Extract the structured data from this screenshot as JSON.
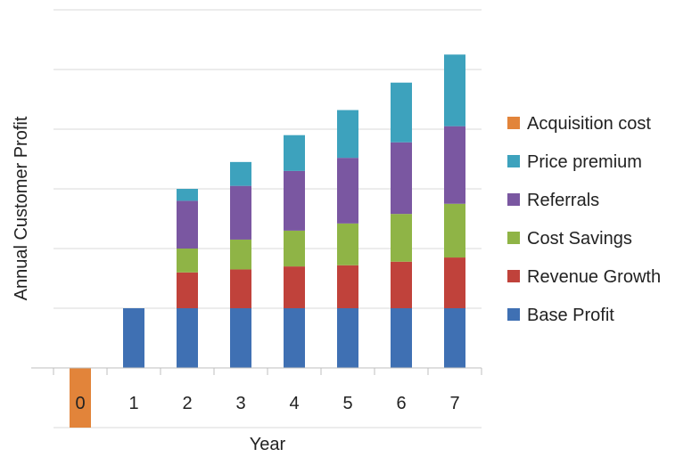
{
  "chart_data": {
    "type": "bar",
    "stacked": true,
    "title": "",
    "xlabel": "Year",
    "ylabel": "Annual Customer Profit",
    "categories": [
      "0",
      "1",
      "2",
      "3",
      "4",
      "5",
      "6",
      "7"
    ],
    "ylim": [
      -1,
      6
    ],
    "y_tick_labels_shown": false,
    "grid": true,
    "legend_position": "right",
    "series": [
      {
        "name": "Acquisition cost",
        "color": "#e2843a",
        "values": [
          -1,
          0,
          0,
          0,
          0,
          0,
          0,
          0
        ]
      },
      {
        "name": "Base Profit",
        "color": "#3f70b3",
        "values": [
          0,
          1,
          1,
          1,
          1,
          1,
          1,
          1
        ]
      },
      {
        "name": "Revenue Growth",
        "color": "#c0423b",
        "values": [
          0,
          0,
          0.6,
          0.65,
          0.7,
          0.72,
          0.78,
          0.85
        ]
      },
      {
        "name": "Cost Savings",
        "color": "#8fb446",
        "values": [
          0,
          0,
          0.4,
          0.5,
          0.6,
          0.7,
          0.8,
          0.9
        ]
      },
      {
        "name": "Referrals",
        "color": "#7a57a1",
        "values": [
          0,
          0,
          0.8,
          0.9,
          1.0,
          1.1,
          1.2,
          1.3
        ]
      },
      {
        "name": "Price premium",
        "color": "#3da2bd",
        "values": [
          0,
          0,
          0.2,
          0.4,
          0.6,
          0.8,
          1.0,
          1.2
        ]
      }
    ],
    "legend_order": [
      "Acquisition cost",
      "Price premium",
      "Referrals",
      "Cost Savings",
      "Revenue Growth",
      "Base Profit"
    ]
  }
}
